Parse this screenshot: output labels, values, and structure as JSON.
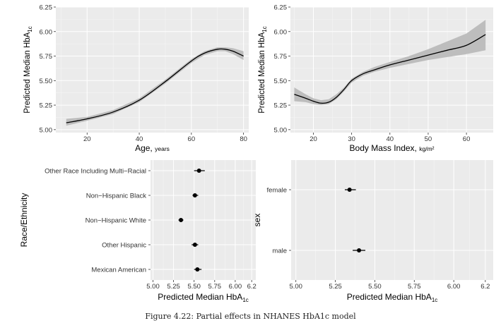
{
  "caption": "Figure 4.22: Partial effects in NHANES HbA1c model",
  "colors": {
    "panel": "#ebebeb",
    "grid_major": "#ffffff",
    "band": "#bdbdbd",
    "line": "#000000",
    "text": "#333333"
  },
  "chart_data": [
    {
      "type": "line",
      "panel": "age",
      "xlabel": "Age,",
      "xlabel_unit": "years",
      "ylabel": "Predicted Median HbA",
      "ylabel_sub": "1c",
      "xlim": [
        8,
        82
      ],
      "ylim": [
        4.97,
        6.25
      ],
      "xticks": [
        20,
        40,
        60,
        80
      ],
      "yticks": [
        "5.00",
        "5.25",
        "5.50",
        "5.75",
        "6.00",
        "6.25"
      ],
      "x": [
        12,
        20,
        30,
        40,
        50,
        60,
        65,
        70,
        73,
        76,
        80
      ],
      "y": [
        5.07,
        5.11,
        5.18,
        5.3,
        5.49,
        5.7,
        5.78,
        5.82,
        5.82,
        5.8,
        5.75
      ],
      "lower": [
        5.04,
        5.09,
        5.16,
        5.28,
        5.47,
        5.68,
        5.76,
        5.8,
        5.8,
        5.77,
        5.71
      ],
      "upper": [
        5.11,
        5.13,
        5.2,
        5.32,
        5.51,
        5.72,
        5.8,
        5.84,
        5.84,
        5.83,
        5.8
      ]
    },
    {
      "type": "line",
      "panel": "bmi",
      "xlabel": "Body Mass Index,",
      "xlabel_unit": "kg/m²",
      "ylabel": "Predicted Median HbA",
      "ylabel_sub": "1c",
      "xlim": [
        14,
        67
      ],
      "ylim": [
        4.97,
        6.25
      ],
      "xticks": [
        20,
        30,
        40,
        50,
        60
      ],
      "yticks": [
        "5.00",
        "5.25",
        "5.50",
        "5.75",
        "6.00",
        "6.25"
      ],
      "x": [
        15,
        18,
        20,
        22,
        24,
        26,
        28,
        30,
        33,
        36,
        40,
        45,
        50,
        55,
        60,
        65
      ],
      "y": [
        5.36,
        5.32,
        5.29,
        5.27,
        5.28,
        5.33,
        5.41,
        5.5,
        5.57,
        5.61,
        5.66,
        5.71,
        5.76,
        5.81,
        5.86,
        5.97
      ],
      "lower": [
        5.29,
        5.28,
        5.26,
        5.25,
        5.26,
        5.31,
        5.39,
        5.48,
        5.55,
        5.59,
        5.63,
        5.67,
        5.71,
        5.74,
        5.77,
        5.81
      ],
      "upper": [
        5.43,
        5.36,
        5.32,
        5.3,
        5.31,
        5.36,
        5.43,
        5.52,
        5.59,
        5.64,
        5.69,
        5.75,
        5.82,
        5.9,
        5.98,
        6.12
      ]
    },
    {
      "type": "scatter",
      "panel": "race",
      "ylabel": "Race/Ethnicity",
      "xlabel": "Predicted Median HbA",
      "xlabel_sub": "1c",
      "xlim": [
        4.97,
        6.25
      ],
      "xticks": [
        "5.00",
        "5.25",
        "5.50",
        "5.75",
        "6.00",
        "6.2"
      ],
      "categories": [
        "Other Race Including Multi−Racial",
        "Non−Hispanic Black",
        "Non−Hispanic White",
        "Other Hispanic",
        "Mexican American"
      ],
      "values": [
        5.56,
        5.51,
        5.34,
        5.51,
        5.54
      ],
      "lower": [
        5.5,
        5.48,
        5.31,
        5.47,
        5.5
      ],
      "upper": [
        5.63,
        5.55,
        5.37,
        5.55,
        5.59
      ]
    },
    {
      "type": "scatter",
      "panel": "sex",
      "ylabel": "sex",
      "xlabel": "Predicted Median HbA",
      "xlabel_sub": "1c",
      "xlim": [
        4.97,
        6.25
      ],
      "xticks": [
        "5.00",
        "5.25",
        "5.50",
        "5.75",
        "6.00",
        "6.2"
      ],
      "categories": [
        "female",
        "male"
      ],
      "values": [
        5.34,
        5.4
      ],
      "lower": [
        5.31,
        5.36
      ],
      "upper": [
        5.38,
        5.44
      ]
    }
  ]
}
